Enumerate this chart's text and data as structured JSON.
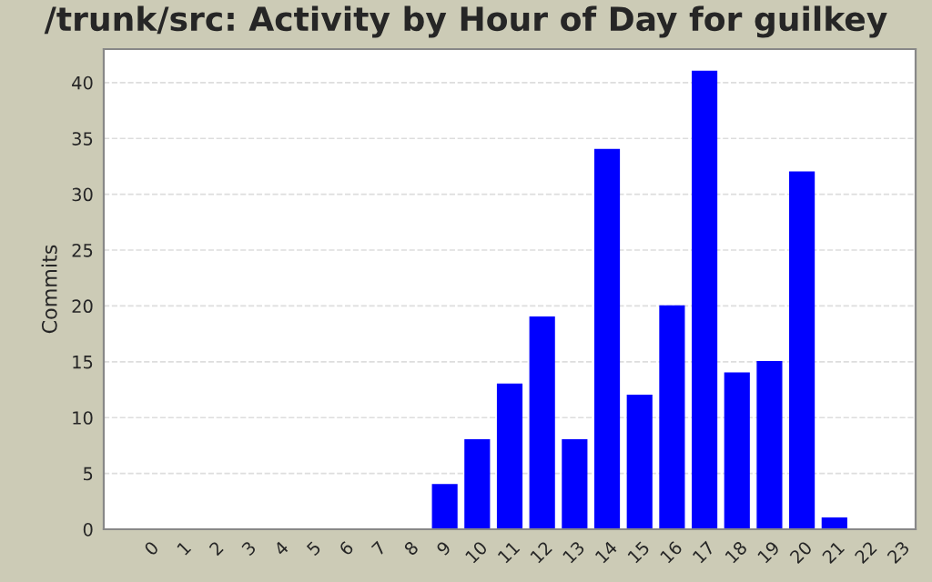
{
  "chart_data": {
    "type": "bar",
    "title": "/trunk/src: Activity by Hour of Day for guilkey",
    "ylabel": "Commits",
    "categories": [
      "0",
      "1",
      "2",
      "3",
      "4",
      "5",
      "6",
      "7",
      "8",
      "9",
      "10",
      "11",
      "12",
      "13",
      "14",
      "15",
      "16",
      "17",
      "18",
      "19",
      "20",
      "21",
      "22",
      "23"
    ],
    "values": [
      0,
      0,
      0,
      0,
      0,
      0,
      0,
      0,
      0,
      4,
      8,
      13,
      19,
      8,
      34,
      12,
      20,
      41,
      14,
      15,
      32,
      1,
      0,
      0
    ],
    "color": "#0000ff",
    "ylim": [
      0,
      43
    ],
    "yticks": [
      0,
      5,
      10,
      15,
      20,
      25,
      30,
      35,
      40
    ],
    "grid": "y",
    "legend": false
  }
}
